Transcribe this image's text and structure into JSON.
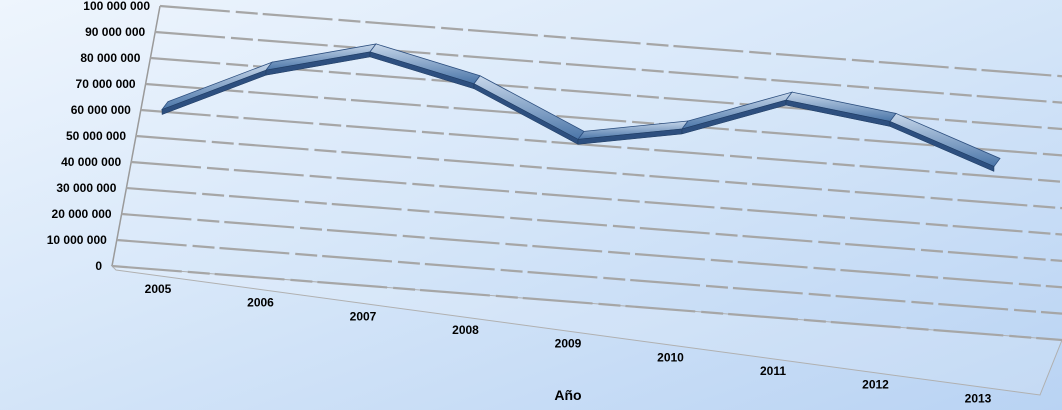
{
  "chart_data": {
    "type": "line",
    "style": "3d-ribbon",
    "title": "",
    "xlabel": "Año",
    "ylabel": "",
    "categories": [
      "2005",
      "2006",
      "2007",
      "2008",
      "2009",
      "2010",
      "2011",
      "2012",
      "2013"
    ],
    "series": [
      {
        "values": [
          64000000,
          82000000,
          92000000,
          83000000,
          65000000,
          72000000,
          86000000,
          81000000,
          67000000
        ]
      }
    ],
    "ylim": [
      0,
      100000000
    ],
    "yticks": [
      0,
      10000000,
      20000000,
      30000000,
      40000000,
      50000000,
      60000000,
      70000000,
      80000000,
      90000000,
      100000000
    ],
    "ytick_labels": [
      "0",
      "10 000 000",
      "20 000 000",
      "30 000 000",
      "40 000 000",
      "50 000 000",
      "60 000 000",
      "70 000 000",
      "80 000 000",
      "90 000 000",
      "100 000 000"
    ],
    "grid": true,
    "legend": "none",
    "colors": {
      "line": "#4a75a8",
      "line_light": "#c7d7ea",
      "line_dark": "#2d4f7f",
      "grid": "#a6a6a6"
    }
  }
}
